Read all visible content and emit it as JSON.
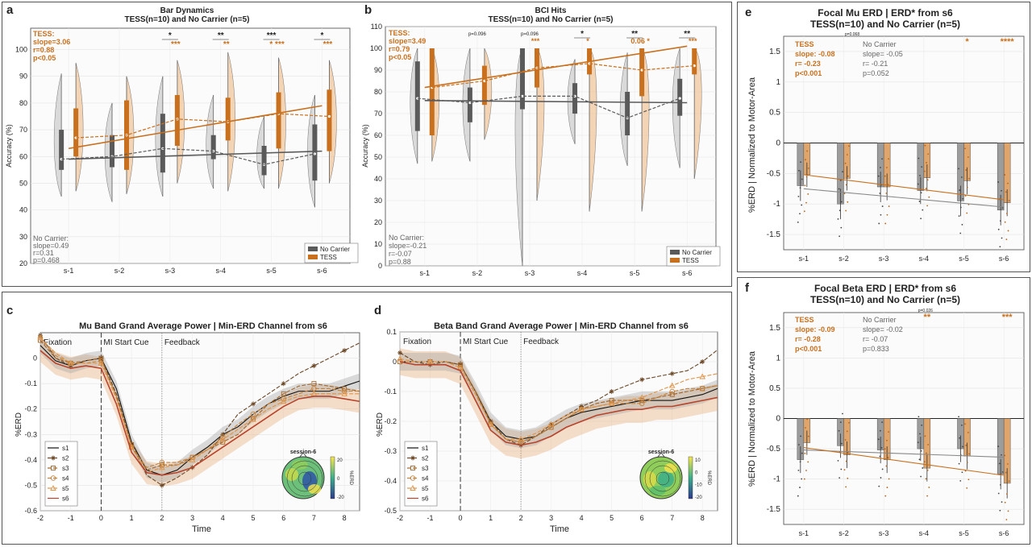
{
  "orange": "#c8701e",
  "gray": "#5a5a5a",
  "panels": {
    "a": {
      "letter": "a",
      "title": "Bar Dynamics",
      "subtitle": "TESS(n=10) and No Carrier (n=5)",
      "ylabel": "Accuracy (%)",
      "yticks": [
        "20",
        "30",
        "40",
        "50",
        "60",
        "70",
        "80",
        "90",
        "100"
      ],
      "xticks": [
        "s-1",
        "s-2",
        "s-3",
        "s-4",
        "s-5",
        "s-6"
      ],
      "tess_stats": [
        "TESS:",
        "slope=3.06",
        "r=0.88",
        "p<0.05"
      ],
      "nc_stats": [
        "No Carrier:",
        "slope=0.49",
        "r=0.31",
        "p=0.468"
      ],
      "legend": [
        "No Carrier",
        "TESS"
      ],
      "sig_black": [
        "*",
        "**",
        "***",
        "*"
      ],
      "sig_orange": [
        "***",
        "**",
        "* ***",
        "***"
      ]
    },
    "b": {
      "letter": "b",
      "title": "BCI Hits",
      "subtitle": "TESS(n=10) and No Carrier (n=5)",
      "ylabel": "Accuracy (%)",
      "yticks": [
        "0",
        "10",
        "20",
        "30",
        "40",
        "50",
        "60",
        "70",
        "80",
        "90",
        "100",
        "110"
      ],
      "xticks": [
        "s-1",
        "s-2",
        "s-3",
        "s-4",
        "s-5",
        "s-6"
      ],
      "tess_stats": [
        "TESS:",
        "slope=3.49",
        "r=0.79",
        "p<0.05"
      ],
      "nc_stats": [
        "No Carrier:",
        "slope=-0.21",
        "r=-0.07",
        "p=0.88"
      ],
      "legend": [
        "No Carrier",
        "TESS"
      ],
      "sig_black": [
        "p=0.096",
        "p=0.096",
        "*",
        "**",
        "**"
      ],
      "sig_orange": [
        "***",
        "*",
        "0.06  *",
        "***"
      ]
    },
    "c": {
      "letter": "c",
      "title": "Mu Band Grand Average Power | Min-ERD Channel from s6",
      "ylabel": "%ERD",
      "xlabel": "Time",
      "yticks": [
        "-0.6",
        "-0.5",
        "-0.4",
        "-0.3",
        "-0.2",
        "-0.1",
        "0"
      ],
      "xticks": [
        "-2",
        "-1",
        "0",
        "1",
        "2",
        "3",
        "4",
        "5",
        "6",
        "7",
        "8"
      ],
      "events": [
        "Fixation",
        "MI Start Cue",
        "Feedback"
      ],
      "legend": [
        "s1",
        "s2",
        "s3",
        "s4",
        "s5",
        "s6"
      ],
      "topo_title": "session-6",
      "topo_ticks": [
        "20",
        "0",
        "-20"
      ],
      "topo_label": "%ERD"
    },
    "d": {
      "letter": "d",
      "title": "Beta Band Grand Average Power | Min-ERD Channel from s6",
      "ylabel": "%ERD",
      "xlabel": "Time",
      "yticks": [
        "-0.5",
        "-0.4",
        "-0.3",
        "-0.2",
        "-0.1",
        "0",
        "0.1"
      ],
      "xticks": [
        "-2",
        "-1",
        "0",
        "1",
        "2",
        "3",
        "4",
        "5",
        "6",
        "7",
        "8"
      ],
      "events": [
        "Fixation",
        "MI Start Cue",
        "Feedback"
      ],
      "legend": [
        "s1",
        "s2",
        "s3",
        "s4",
        "s5",
        "s6"
      ],
      "topo_title": "session-6",
      "topo_ticks": [
        "10",
        "0",
        "-10",
        "-20"
      ],
      "topo_label": "%ERD"
    },
    "e": {
      "letter": "e",
      "title": "Focal Mu ERD | ERD* from s6",
      "subtitle": "TESS(n=10) and No Carrier (n=5)",
      "ylabel": "%ERD | Normalized to Motor-Area",
      "yticks": [
        "-1.5",
        "-1",
        "-0.5",
        "0",
        "0.5",
        "1",
        "1.5"
      ],
      "xticks": [
        "s-1",
        "s-2",
        "s-3",
        "s-4",
        "s-5",
        "s-6"
      ],
      "tess_stats": [
        "TESS",
        "slope: -0.08",
        "r= -0.23",
        "p<0.001"
      ],
      "nc_stats": [
        "No Carrier",
        "slope= -0.05",
        "r= -0.21",
        "p=0.052"
      ],
      "sig_top": "p=0.068",
      "sig_s5": "*",
      "sig_s6": "****"
    },
    "f": {
      "letter": "f",
      "title": "Focal Beta ERD | ERD* from s6",
      "subtitle": "TESS(n=10) and No Carrier (n=5)",
      "ylabel": "%ERD | Normalized to Motor-Area",
      "yticks": [
        "-1.5",
        "-1",
        "-0.5",
        "0",
        "0.5",
        "1",
        "1.5"
      ],
      "xticks": [
        "s-1",
        "s-2",
        "s-3",
        "s-4",
        "s-5",
        "s-6"
      ],
      "tess_stats": [
        "TESS",
        "slope: -0.09",
        "r= -0.28",
        "p<0.001"
      ],
      "nc_stats": [
        "No Carrier",
        "slope= -0.02",
        "r= -0.07",
        "p=0.833"
      ],
      "sig_top": "p=0.026",
      "sig_s4": "**",
      "sig_s6": "***"
    }
  },
  "chart_data": [
    {
      "panel": "a",
      "type": "box",
      "title": "Bar Dynamics",
      "ylabel": "Accuracy (%)",
      "ylim": [
        20,
        110
      ],
      "categories": [
        "s-1",
        "s-2",
        "s-3",
        "s-4",
        "s-5",
        "s-6"
      ],
      "series": [
        {
          "name": "No Carrier",
          "median": [
            59,
            60,
            63,
            62,
            57,
            61
          ],
          "q1": [
            55,
            56,
            54,
            59,
            53,
            51
          ],
          "q3": [
            70,
            68,
            76,
            68,
            64,
            72
          ],
          "min": [
            45,
            43,
            45,
            48,
            48,
            41
          ],
          "max": [
            91,
            80,
            90,
            83,
            75,
            83
          ],
          "fit": [
            59,
            62
          ]
        },
        {
          "name": "TESS",
          "median": [
            67,
            68,
            74,
            73,
            76,
            75
          ],
          "q1": [
            60,
            55,
            64,
            66,
            63,
            62
          ],
          "q3": [
            78,
            81,
            83,
            82,
            84,
            85
          ],
          "min": [
            47,
            46,
            50,
            47,
            48,
            50
          ],
          "max": [
            95,
            90,
            96,
            99,
            97,
            96
          ],
          "fit": [
            63,
            79
          ]
        }
      ]
    },
    {
      "panel": "b",
      "type": "box",
      "title": "BCI Hits",
      "ylabel": "Accuracy (%)",
      "ylim": [
        0,
        110
      ],
      "categories": [
        "s-1",
        "s-2",
        "s-3",
        "s-4",
        "s-5",
        "s-6"
      ],
      "series": [
        {
          "name": "No Carrier",
          "median": [
            77,
            75,
            78,
            78,
            68,
            77
          ],
          "q1": [
            62,
            66,
            72,
            70,
            60,
            69
          ],
          "q3": [
            94,
            82,
            100,
            84,
            80,
            86
          ],
          "min": [
            47,
            48,
            0,
            56,
            46,
            45
          ],
          "max": [
            100,
            100,
            100,
            95,
            98,
            100
          ],
          "fit": [
            76,
            75
          ]
        },
        {
          "name": "TESS",
          "median": [
            82,
            85,
            91,
            93,
            90,
            92
          ],
          "q1": [
            60,
            74,
            82,
            88,
            78,
            88
          ],
          "q3": [
            100,
            92,
            100,
            100,
            100,
            100
          ],
          "min": [
            48,
            58,
            30,
            25,
            25,
            40
          ],
          "max": [
            100,
            100,
            100,
            100,
            100,
            100
          ],
          "fit": [
            82,
            101
          ]
        }
      ]
    },
    {
      "panel": "c",
      "type": "line",
      "title": "Mu Band Grand Average Power | Min-ERD Channel from s6",
      "xlabel": "Time",
      "ylabel": "%ERD",
      "xlim": [
        -2,
        8.5
      ],
      "ylim": [
        -0.6,
        0.1
      ],
      "x": [
        -2,
        -1.5,
        -1,
        -0.5,
        0,
        0.5,
        1,
        1.5,
        2,
        2.5,
        3,
        3.5,
        4,
        4.5,
        5,
        5.5,
        6,
        6.5,
        7,
        7.5,
        8,
        8.5
      ],
      "series": [
        {
          "name": "s1",
          "values": [
            0.05,
            -0.01,
            -0.03,
            -0.01,
            0.0,
            -0.12,
            -0.33,
            -0.44,
            -0.46,
            -0.44,
            -0.39,
            -0.35,
            -0.3,
            -0.27,
            -0.22,
            -0.18,
            -0.15,
            -0.13,
            -0.13,
            -0.13,
            -0.11,
            -0.09
          ]
        },
        {
          "name": "s2",
          "values": [
            0.09,
            0.0,
            -0.03,
            -0.01,
            0.0,
            -0.14,
            -0.34,
            -0.46,
            -0.5,
            -0.47,
            -0.43,
            -0.38,
            -0.3,
            -0.22,
            -0.18,
            -0.14,
            -0.1,
            -0.06,
            -0.03,
            0.0,
            0.03,
            0.06
          ]
        },
        {
          "name": "s3",
          "values": [
            0.07,
            0.0,
            -0.02,
            -0.01,
            0.0,
            -0.15,
            -0.34,
            -0.44,
            -0.42,
            -0.42,
            -0.39,
            -0.36,
            -0.33,
            -0.3,
            -0.24,
            -0.18,
            -0.14,
            -0.11,
            -0.1,
            -0.11,
            -0.12,
            -0.13
          ]
        },
        {
          "name": "s4",
          "values": [
            0.08,
            0.01,
            -0.02,
            -0.02,
            -0.01,
            -0.15,
            -0.35,
            -0.43,
            -0.41,
            -0.41,
            -0.39,
            -0.36,
            -0.31,
            -0.26,
            -0.22,
            -0.18,
            -0.16,
            -0.14,
            -0.12,
            -0.12,
            -0.13,
            -0.13
          ]
        },
        {
          "name": "s5",
          "values": [
            0.08,
            0.02,
            -0.02,
            -0.02,
            -0.02,
            -0.16,
            -0.35,
            -0.45,
            -0.43,
            -0.42,
            -0.4,
            -0.36,
            -0.32,
            -0.28,
            -0.24,
            -0.2,
            -0.17,
            -0.15,
            -0.14,
            -0.14,
            -0.14,
            -0.14
          ]
        },
        {
          "name": "s6",
          "values": [
            0.03,
            -0.02,
            -0.04,
            -0.03,
            -0.04,
            -0.18,
            -0.37,
            -0.45,
            -0.46,
            -0.45,
            -0.43,
            -0.39,
            -0.35,
            -0.31,
            -0.27,
            -0.23,
            -0.19,
            -0.16,
            -0.15,
            -0.15,
            -0.16,
            -0.17
          ]
        }
      ]
    },
    {
      "panel": "d",
      "type": "line",
      "title": "Beta Band Grand Average Power | Min-ERD Channel from s6",
      "xlabel": "Time",
      "ylabel": "%ERD",
      "xlim": [
        -2,
        8.5
      ],
      "ylim": [
        -0.5,
        0.1
      ],
      "x": [
        -2,
        -1.5,
        -1,
        -0.5,
        0,
        0.5,
        1,
        1.5,
        2,
        2.5,
        3,
        3.5,
        4,
        4.5,
        5,
        5.5,
        6,
        6.5,
        7,
        7.5,
        8,
        8.5
      ],
      "series": [
        {
          "name": "s1",
          "values": [
            0.0,
            0.0,
            0.0,
            0.0,
            -0.01,
            -0.1,
            -0.2,
            -0.25,
            -0.26,
            -0.25,
            -0.22,
            -0.19,
            -0.17,
            -0.16,
            -0.15,
            -0.14,
            -0.13,
            -0.13,
            -0.13,
            -0.12,
            -0.11,
            -0.09
          ]
        },
        {
          "name": "s2",
          "values": [
            0.03,
            0.0,
            -0.01,
            0.0,
            -0.01,
            -0.1,
            -0.2,
            -0.26,
            -0.28,
            -0.25,
            -0.21,
            -0.18,
            -0.15,
            -0.13,
            -0.1,
            -0.08,
            -0.06,
            -0.05,
            -0.04,
            -0.03,
            0.0,
            0.04
          ]
        },
        {
          "name": "s3",
          "values": [
            0.0,
            0.0,
            0.0,
            0.0,
            -0.01,
            -0.1,
            -0.21,
            -0.26,
            -0.27,
            -0.25,
            -0.22,
            -0.19,
            -0.16,
            -0.14,
            -0.13,
            -0.13,
            -0.13,
            -0.12,
            -0.11,
            -0.1,
            -0.09,
            -0.08
          ]
        },
        {
          "name": "s4",
          "values": [
            0.0,
            0.0,
            0.0,
            0.0,
            -0.02,
            -0.11,
            -0.21,
            -0.26,
            -0.27,
            -0.25,
            -0.22,
            -0.19,
            -0.16,
            -0.15,
            -0.14,
            -0.14,
            -0.14,
            -0.12,
            -0.1,
            -0.09,
            -0.09,
            -0.08
          ]
        },
        {
          "name": "s5",
          "values": [
            0.01,
            0.0,
            0.0,
            0.0,
            -0.02,
            -0.11,
            -0.21,
            -0.26,
            -0.26,
            -0.24,
            -0.21,
            -0.18,
            -0.16,
            -0.15,
            -0.14,
            -0.13,
            -0.12,
            -0.1,
            -0.08,
            -0.06,
            -0.05,
            -0.04
          ]
        },
        {
          "name": "s6",
          "values": [
            0.0,
            -0.01,
            -0.01,
            -0.01,
            -0.03,
            -0.13,
            -0.23,
            -0.27,
            -0.28,
            -0.27,
            -0.25,
            -0.22,
            -0.2,
            -0.18,
            -0.17,
            -0.16,
            -0.16,
            -0.15,
            -0.15,
            -0.14,
            -0.13,
            -0.12
          ]
        }
      ]
    },
    {
      "panel": "e",
      "type": "bar",
      "title": "Focal Mu ERD | ERD* from s6",
      "ylabel": "%ERD | Normalized to Motor-Area",
      "ylim": [
        -1.75,
        1.75
      ],
      "categories": [
        "s-1",
        "s-2",
        "s-3",
        "s-4",
        "s-5",
        "s-6"
      ],
      "series": [
        {
          "name": "No Carrier",
          "values": [
            -0.7,
            -1.0,
            -0.72,
            -0.78,
            -0.95,
            -1.1
          ],
          "err": [
            0.25,
            0.25,
            0.25,
            0.22,
            0.25,
            0.25
          ]
        },
        {
          "name": "TESS",
          "values": [
            -0.52,
            -0.58,
            -0.72,
            -0.57,
            -0.62,
            -0.98
          ],
          "err": [
            0.2,
            0.2,
            0.22,
            0.22,
            0.22,
            0.22
          ]
        }
      ]
    },
    {
      "panel": "f",
      "type": "bar",
      "title": "Focal Beta ERD | ERD* from s6",
      "ylabel": "%ERD | Normalized to Motor-Area",
      "ylim": [
        -1.75,
        1.75
      ],
      "categories": [
        "s-1",
        "s-2",
        "s-3",
        "s-4",
        "s-5",
        "s-6"
      ],
      "series": [
        {
          "name": "No Carrier",
          "values": [
            -0.68,
            -0.45,
            -0.52,
            -0.5,
            -0.5,
            -0.92
          ],
          "err": [
            0.22,
            0.2,
            0.22,
            0.2,
            0.22,
            0.25
          ]
        },
        {
          "name": "TESS",
          "values": [
            -0.4,
            -0.6,
            -0.68,
            -0.82,
            -0.62,
            -1.07
          ],
          "err": [
            0.2,
            0.22,
            0.22,
            0.22,
            0.22,
            0.25
          ]
        }
      ]
    }
  ]
}
